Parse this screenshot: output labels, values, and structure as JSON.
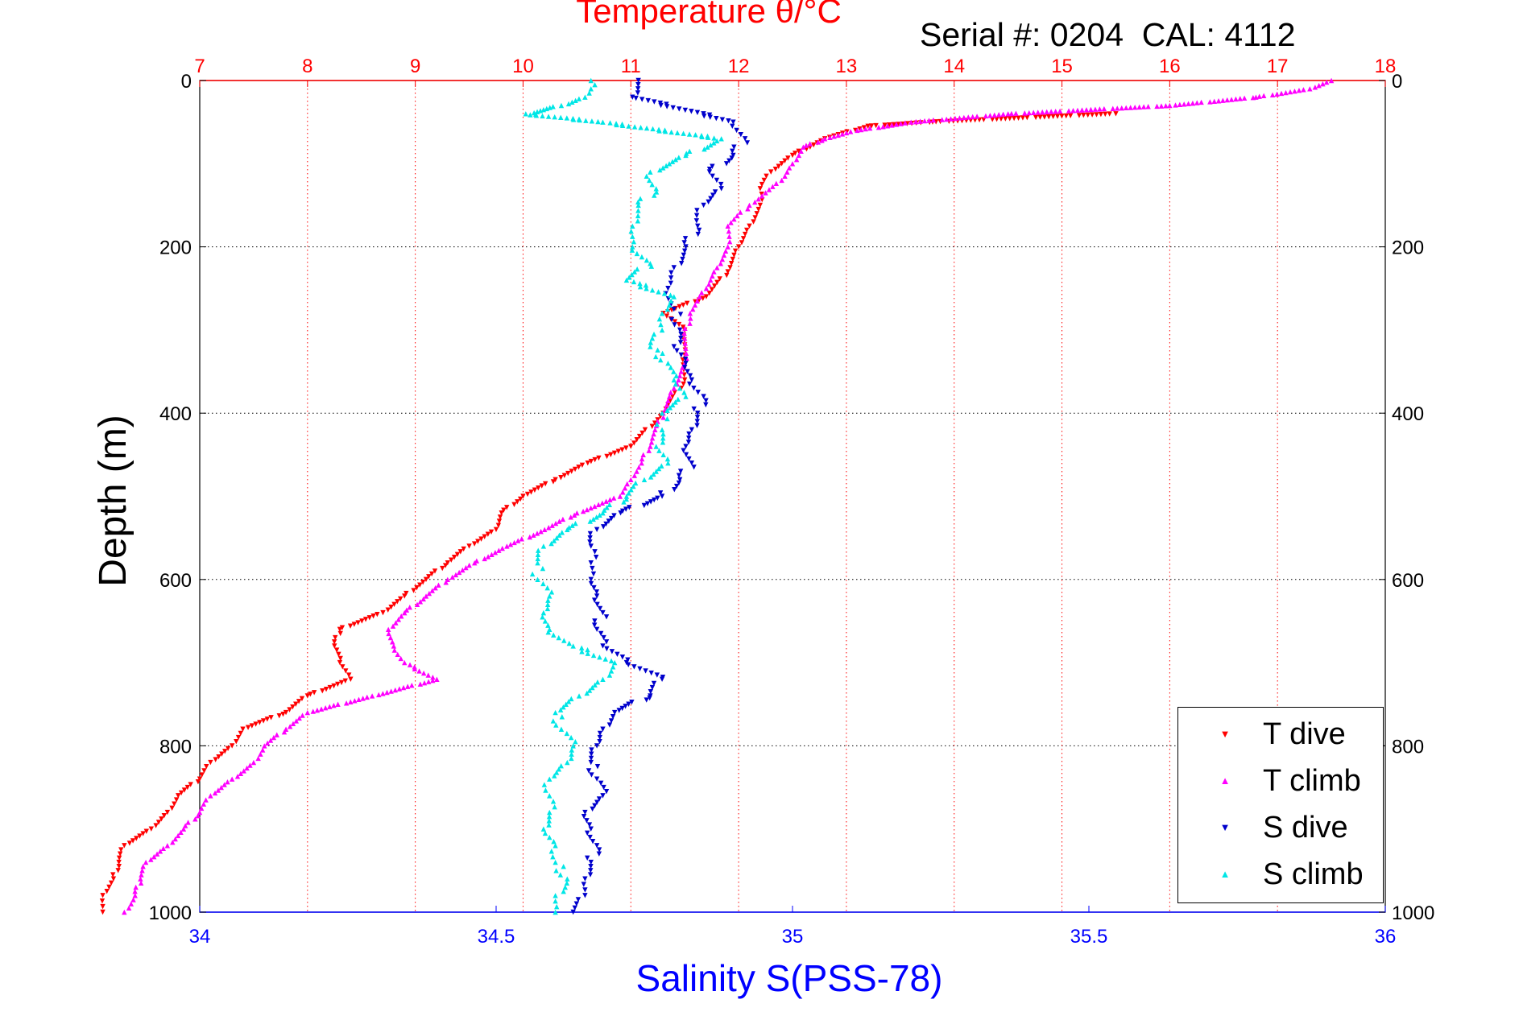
{
  "chart_data": {
    "type": "scatter",
    "title": "Temperature θ/°C",
    "subtitle": "Serial #: 0204  CAL: 4112",
    "ylabel": "Depth (m)",
    "xlabel_bottom": "Salinity S(PSS-78)",
    "y_axis": {
      "range": [
        0,
        1000
      ],
      "reversed": true,
      "ticks": [
        "0",
        "200",
        "400",
        "600",
        "800",
        "1000"
      ],
      "grid": true,
      "color": "#000000"
    },
    "x_axis_top": {
      "quantity": "temperature",
      "range": [
        7,
        18
      ],
      "ticks": [
        "7",
        "8",
        "9",
        "10",
        "11",
        "12",
        "13",
        "14",
        "15",
        "16",
        "17",
        "18"
      ],
      "grid": true,
      "color": "#ff0000"
    },
    "x_axis_bottom": {
      "quantity": "salinity",
      "range": [
        34,
        36
      ],
      "ticks": [
        "34",
        "34.5",
        "35",
        "35.5",
        "36"
      ],
      "color": "#0000ff"
    },
    "legend": {
      "position": "bottom-right"
    },
    "series": [
      {
        "name": "T dive",
        "axis": "temperature",
        "color": "#ff0000",
        "marker": "triangle-down",
        "depth": [
          40,
          50,
          55,
          70,
          90,
          110,
          130,
          150,
          175,
          200,
          230,
          260,
          280,
          300,
          330,
          360,
          400,
          440,
          460,
          480,
          500,
          520,
          540,
          560,
          580,
          600,
          620,
          640,
          660,
          680,
          700,
          720,
          740,
          760,
          780,
          800,
          820,
          840,
          860,
          880,
          900,
          920,
          940,
          960,
          980,
          1000
        ],
        "values": [
          15.5,
          13.8,
          13.2,
          12.8,
          12.5,
          12.3,
          12.2,
          12.2,
          12.1,
          12.0,
          11.9,
          11.7,
          11.3,
          11.5,
          11.5,
          11.5,
          11.3,
          11.0,
          10.6,
          10.3,
          10.0,
          9.8,
          9.75,
          9.5,
          9.3,
          9.1,
          8.9,
          8.7,
          8.3,
          8.25,
          8.3,
          8.4,
          8.0,
          7.8,
          7.4,
          7.3,
          7.1,
          7.0,
          6.8,
          6.7,
          6.55,
          6.3,
          6.25,
          6.2,
          6.1,
          6.1
        ]
      },
      {
        "name": "T climb",
        "axis": "temperature",
        "color": "#ff00ff",
        "marker": "triangle-up",
        "depth": [
          0,
          10,
          20,
          30,
          40,
          50,
          60,
          70,
          80,
          100,
          120,
          150,
          175,
          200,
          225,
          250,
          280,
          310,
          340,
          370,
          400,
          430,
          460,
          480,
          500,
          520,
          540,
          560,
          580,
          600,
          620,
          640,
          660,
          680,
          700,
          720,
          740,
          760,
          780,
          800,
          820,
          840,
          860,
          880,
          900,
          920,
          940,
          960,
          980,
          1000
        ],
        "values": [
          17.5,
          17.3,
          16.8,
          16.0,
          14.5,
          13.6,
          13.1,
          12.8,
          12.6,
          12.5,
          12.4,
          12.1,
          11.9,
          11.9,
          11.8,
          11.7,
          11.55,
          11.5,
          11.5,
          11.4,
          11.3,
          11.2,
          11.1,
          11.0,
          10.9,
          10.5,
          10.2,
          9.85,
          9.55,
          9.3,
          9.1,
          8.9,
          8.75,
          8.8,
          8.9,
          9.2,
          8.6,
          8.0,
          7.8,
          7.6,
          7.5,
          7.3,
          7.1,
          7.0,
          6.85,
          6.7,
          6.5,
          6.45,
          6.4,
          6.3
        ]
      },
      {
        "name": "S dive",
        "axis": "salinity",
        "color": "#0000cc",
        "marker": "triangle-down",
        "depth": [
          0,
          20,
          50,
          70,
          90,
          110,
          130,
          150,
          175,
          200,
          225,
          250,
          275,
          300,
          320,
          340,
          360,
          380,
          400,
          420,
          440,
          460,
          480,
          500,
          520,
          540,
          560,
          580,
          600,
          620,
          640,
          660,
          680,
          700,
          720,
          740,
          760,
          780,
          800,
          820,
          840,
          860,
          880,
          900,
          920,
          940,
          960,
          980,
          1000
        ],
        "values": [
          34.74,
          34.73,
          34.9,
          34.92,
          34.9,
          34.86,
          34.88,
          34.85,
          34.84,
          34.82,
          34.8,
          34.79,
          34.8,
          34.81,
          34.8,
          34.82,
          34.83,
          34.85,
          34.84,
          34.83,
          34.82,
          34.83,
          34.81,
          34.78,
          34.71,
          34.67,
          34.66,
          34.66,
          34.66,
          34.67,
          34.68,
          34.67,
          34.68,
          34.72,
          34.78,
          34.76,
          34.7,
          34.68,
          34.67,
          34.66,
          34.67,
          34.68,
          34.65,
          34.66,
          34.67,
          34.66,
          34.65,
          34.65,
          34.63
        ]
      },
      {
        "name": "S climb",
        "axis": "salinity",
        "color": "#00e6e6",
        "marker": "triangle-up",
        "depth": [
          0,
          10,
          20,
          30,
          40,
          50,
          70,
          90,
          110,
          130,
          150,
          175,
          200,
          220,
          240,
          260,
          280,
          300,
          320,
          340,
          360,
          380,
          400,
          420,
          440,
          460,
          480,
          500,
          520,
          540,
          560,
          580,
          600,
          620,
          640,
          660,
          680,
          700,
          720,
          740,
          760,
          780,
          800,
          820,
          840,
          860,
          880,
          900,
          920,
          940,
          960,
          980,
          1000
        ],
        "values": [
          34.66,
          34.66,
          34.65,
          34.61,
          34.55,
          34.68,
          34.88,
          34.82,
          34.76,
          34.77,
          34.74,
          34.73,
          34.73,
          34.76,
          34.72,
          34.8,
          34.78,
          34.78,
          34.76,
          34.79,
          34.8,
          34.82,
          34.78,
          34.78,
          34.77,
          34.79,
          34.75,
          34.72,
          34.68,
          34.62,
          34.58,
          34.57,
          34.57,
          34.59,
          34.58,
          34.59,
          34.63,
          34.7,
          34.68,
          34.64,
          34.6,
          34.61,
          34.63,
          34.62,
          34.59,
          34.59,
          34.59,
          34.58,
          34.6,
          34.6,
          34.62,
          34.6,
          34.6
        ]
      }
    ]
  }
}
